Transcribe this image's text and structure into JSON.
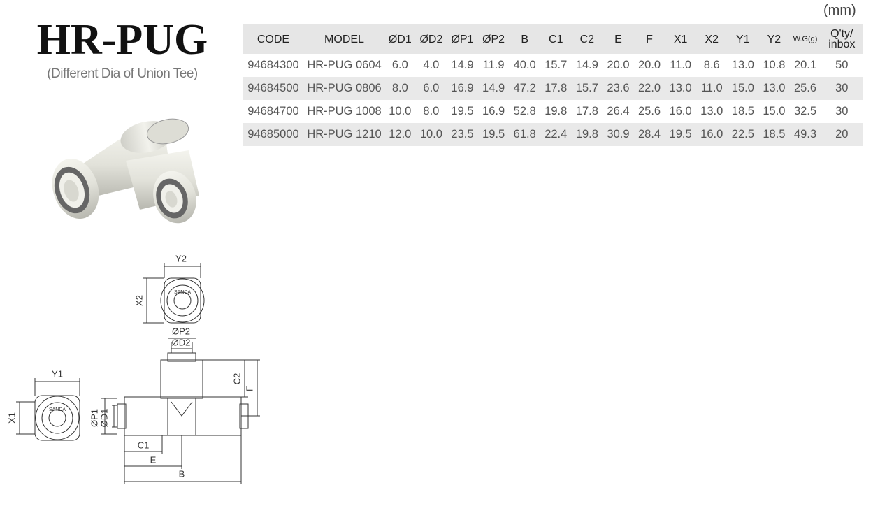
{
  "header": {
    "title": "HR-PUG",
    "subtitle": "(Different Dia of Union Tee)"
  },
  "unit": "(mm)",
  "table": {
    "columns": [
      "CODE",
      "MODEL",
      "ØD1",
      "ØD2",
      "ØP1",
      "ØP2",
      "B",
      "C1",
      "C2",
      "E",
      "F",
      "X1",
      "X2",
      "Y1",
      "Y2",
      "W.G(g)",
      "Q'ty/\ninbox"
    ],
    "rows": [
      [
        "94684300",
        "HR-PUG 0604",
        "6.0",
        "4.0",
        "14.9",
        "11.9",
        "40.0",
        "15.7",
        "14.9",
        "20.0",
        "20.0",
        "11.0",
        "8.6",
        "13.0",
        "10.8",
        "20.1",
        "50"
      ],
      [
        "94684500",
        "HR-PUG 0806",
        "8.0",
        "6.0",
        "16.9",
        "14.9",
        "47.2",
        "17.8",
        "15.7",
        "23.6",
        "22.0",
        "13.0",
        "11.0",
        "15.0",
        "13.0",
        "25.6",
        "30"
      ],
      [
        "94684700",
        "HR-PUG 1008",
        "10.0",
        "8.0",
        "19.5",
        "16.9",
        "52.8",
        "19.8",
        "17.8",
        "26.4",
        "25.6",
        "16.0",
        "13.0",
        "18.5",
        "15.0",
        "32.5",
        "30"
      ],
      [
        "94685000",
        "HR-PUG 1210",
        "12.0",
        "10.0",
        "23.5",
        "19.5",
        "61.8",
        "22.4",
        "19.8",
        "30.9",
        "28.4",
        "19.5",
        "16.0",
        "22.5",
        "18.5",
        "49.3",
        "20"
      ]
    ]
  },
  "drawing": {
    "brand": "SANDA",
    "y2": "Y2",
    "x2": "X2",
    "p2": "ØP2",
    "d2": "ØD2",
    "c2": "C2",
    "f": "F",
    "y1": "Y1",
    "x1": "X1",
    "p1": "ØP1",
    "d1": "ØD1",
    "c1": "C1",
    "e": "E",
    "b": "B"
  }
}
